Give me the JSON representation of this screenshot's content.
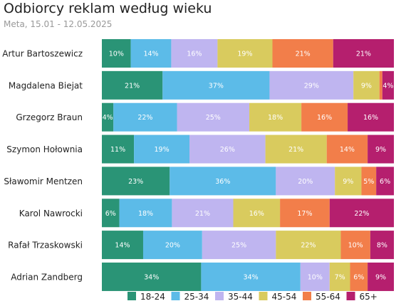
{
  "chart_data": {
    "type": "bar",
    "orientation": "horizontal",
    "stacked": true,
    "title": "Odbiorcy reklam według wieku",
    "subtitle": "Meta, 15.01 - 12.05.2025",
    "categories": [
      "Artur Bartoszewicz",
      "Magdalena Biejat",
      "Grzegorz Braun",
      "Szymon Hołownia",
      "Sławomir Mentzen",
      "Karol Nawrocki",
      "Rafał Trzaskowski",
      "Adrian Zandberg"
    ],
    "series": [
      {
        "name": "18-24",
        "color": "#2a9476",
        "values": [
          10,
          21,
          4,
          11,
          23,
          6,
          14,
          34
        ]
      },
      {
        "name": "25-34",
        "color": "#5cbbe8",
        "values": [
          14,
          37,
          22,
          19,
          36,
          18,
          20,
          34
        ]
      },
      {
        "name": "35-44",
        "color": "#bfb5f0",
        "values": [
          16,
          29,
          25,
          26,
          20,
          21,
          25,
          10
        ]
      },
      {
        "name": "45-54",
        "color": "#d9cb5e",
        "values": [
          19,
          9,
          18,
          21,
          9,
          16,
          22,
          7
        ]
      },
      {
        "name": "55-64",
        "color": "#f27e4a",
        "values": [
          21,
          1,
          16,
          14,
          5,
          17,
          10,
          6
        ]
      },
      {
        "name": "65+",
        "color": "#b51f6e",
        "values": [
          21,
          4,
          16,
          9,
          6,
          22,
          8,
          9
        ]
      }
    ],
    "data_label_suffix": "%",
    "legend_position": "bottom",
    "grid": false
  }
}
